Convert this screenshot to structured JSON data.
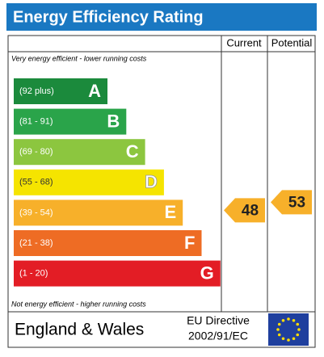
{
  "chart_data": {
    "type": "epc",
    "title": "Energy Efficiency Rating",
    "columns": [
      "Current",
      "Potential"
    ],
    "top_note": "Very energy efficient - lower running costs",
    "bottom_note": "Not energy efficient - higher running costs",
    "bands": [
      {
        "range": "(92 plus)",
        "letter": "A",
        "color": "#1b8a3c"
      },
      {
        "range": "(81 - 91)",
        "letter": "B",
        "color": "#2aa44a"
      },
      {
        "range": "(69 - 80)",
        "letter": "C",
        "color": "#8cc63f"
      },
      {
        "range": "(55 - 68)",
        "letter": "D",
        "color": "#f5e400"
      },
      {
        "range": "(39 - 54)",
        "letter": "E",
        "color": "#f7b02a"
      },
      {
        "range": "(21 - 38)",
        "letter": "F",
        "color": "#ee6c24"
      },
      {
        "range": "(1 - 20)",
        "letter": "G",
        "color": "#e31d25"
      }
    ],
    "current": 48,
    "potential": 53,
    "footer": {
      "region": "England & Wales",
      "directive": [
        "EU Directive",
        "2002/91/EC"
      ]
    }
  }
}
